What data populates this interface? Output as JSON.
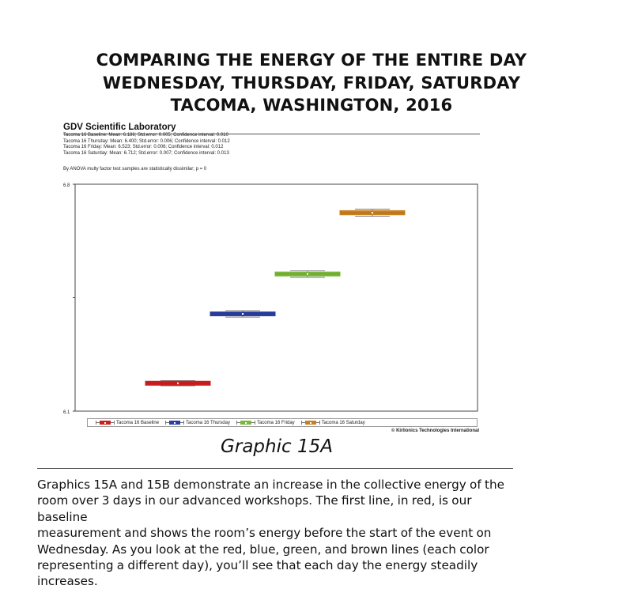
{
  "title_lines": [
    "COMPARING THE ENERGY OF THE ENTIRE DAY",
    "WEDNESDAY, THURSDAY, FRIDAY, SATURDAY",
    "TACOMA, WASHINGTON, 2016"
  ],
  "lab": {
    "name": "GDV Scientific Laboratory",
    "stats_lines": [
      "Tacoma 16 Baseline: Mean: 6.186; Std.error: 0.005; Confidence interval: 0.010",
      "Tacoma 16 Thursday: Mean: 6.400; Std.error: 0.006; Confidence interval: 0.012",
      "Tacoma 16 Friday: Mean: 6.523; Std.error: 0.006; Confidence interval: 0.012",
      "Tacoma 16 Saturday: Mean: 6.712; Std.error: 0.007; Confidence interval: 0.013"
    ],
    "anova_note": "By ANOVA multy factor test samples are statistically dissimilar; p = 0"
  },
  "chart_data": {
    "type": "box",
    "y_tick_labels": [
      "6.8",
      "6.1"
    ],
    "ylim": [
      6.1,
      6.8
    ],
    "grid": false,
    "legend_position": "bottom",
    "series": [
      {
        "name": "Tacoma 16 Baseline",
        "color": "#cc1f1f",
        "mean": 6.186,
        "ci": 0.01,
        "whisker_low": 6.178,
        "whisker_high": 6.194
      },
      {
        "name": "Tacoma 16 Thursday",
        "color": "#2b3f9e",
        "mean": 6.4,
        "ci": 0.012,
        "whisker_low": 6.39,
        "whisker_high": 6.41
      },
      {
        "name": "Tacoma 16 Friday",
        "color": "#79b83a",
        "mean": 6.523,
        "ci": 0.012,
        "whisker_low": 6.513,
        "whisker_high": 6.533
      },
      {
        "name": "Tacoma 16 Saturday",
        "color": "#c9801f",
        "mean": 6.712,
        "ci": 0.013,
        "whisker_low": 6.701,
        "whisker_high": 6.723
      }
    ]
  },
  "copyright": "© Kirlionics Technologies International",
  "caption": "Graphic 15A",
  "description_lines": [
    "Graphics 15A and 15B demonstrate an increase in the collective energy of the",
    "room over 3 days in our advanced workshops. The first line, in red, is our baseline",
    "measurement and shows the room’s energy before the start of the event on",
    "Wednesday. As you look at the red, blue, green, and brown lines (each color",
    "representing a different day), you’ll see that each day the energy steadily",
    "increases."
  ]
}
